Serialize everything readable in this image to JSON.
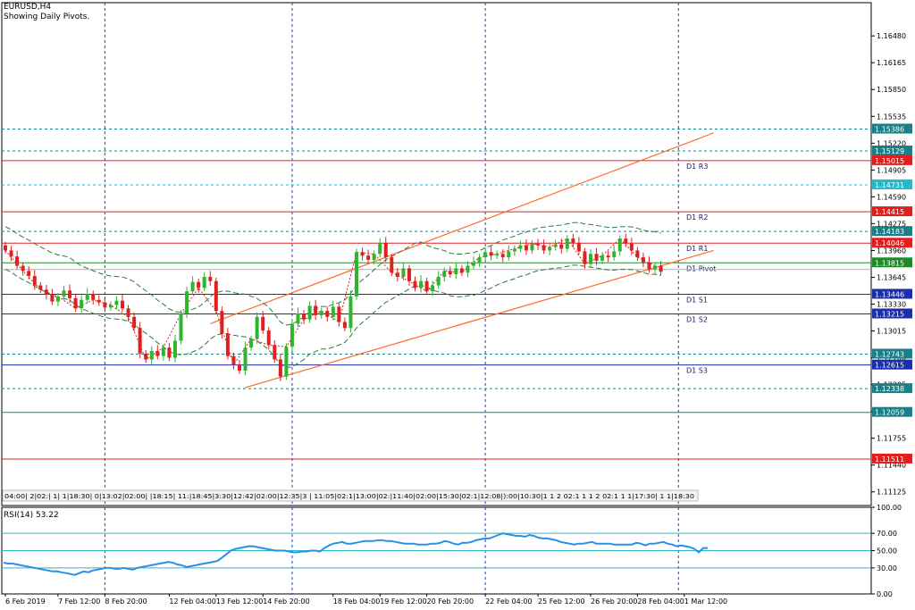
{
  "chart_data": {
    "type": "candlestick",
    "symbol_label": "EURUSD,H4",
    "subtitle": "Showing Daily Pivots.",
    "colors": {
      "up": "#2db52d",
      "down": "#e02020",
      "grid": "#1d3fb8",
      "frame": "#000000",
      "channel": "#ff6a2a",
      "rsi": "#2b8fe6",
      "level_cyan": "#28b8c8"
    },
    "price_ylim": [
      1.10965,
      1.1687
    ],
    "y_ticks": [
      "1.16480",
      "1.16165",
      "1.15850",
      "1.15535",
      "1.15220",
      "1.14905",
      "1.14590",
      "1.14275",
      "1.13960",
      "1.13645",
      "1.13330",
      "1.13015",
      "1.12700",
      "1.12385",
      "1.12070",
      "1.11755",
      "1.11440",
      "1.11125"
    ],
    "x_labels": [
      {
        "t": "6 Feb 2019",
        "i": 0
      },
      {
        "t": "7 Feb 12:00",
        "i": 9
      },
      {
        "t": "8 Feb 20:00",
        "i": 17
      },
      {
        "t": "12 Feb 04:00",
        "i": 28
      },
      {
        "t": "13 Feb 12:00",
        "i": 36
      },
      {
        "t": "14 Feb 20:00",
        "i": 44
      },
      {
        "t": "18 Feb 04:00",
        "i": 56
      },
      {
        "t": "19 Feb 12:00",
        "i": 64
      },
      {
        "t": "20 Feb 20:00",
        "i": 72
      },
      {
        "t": "22 Feb 04:00",
        "i": 82
      },
      {
        "t": "25 Feb 12:00",
        "i": 91
      },
      {
        "t": "26 Feb 20:00",
        "i": 100
      },
      {
        "t": "28 Feb 04:00",
        "i": 108
      },
      {
        "t": "1 Mar 12:00",
        "i": 116
      }
    ],
    "vgrid_idx": [
      17,
      49,
      82,
      115
    ],
    "levels": [
      {
        "v": 1.15386,
        "style": "dash",
        "color": "#1a7f86",
        "label": "1.15386",
        "tag": "",
        "badge": "#1a7f86"
      },
      {
        "v": 1.15129,
        "style": "dash",
        "color": "#1a7f86",
        "label": "1.15129",
        "tag": "",
        "badge": "#1a7f86"
      },
      {
        "v": 1.15015,
        "style": "solid",
        "color": "#e02020",
        "label": "1.15015",
        "tag": "D1 R3",
        "badge": "#e02020"
      },
      {
        "v": 1.14731,
        "style": "dash",
        "color": "#28b8c8",
        "label": "1.14731",
        "tag": "",
        "badge": "#28b8c8"
      },
      {
        "v": 1.14415,
        "style": "solid",
        "color": "#e02020",
        "label": "1.14415",
        "tag": "D1 R2",
        "badge": "#e02020"
      },
      {
        "v": 1.14183,
        "style": "dash",
        "color": "#1a7f86",
        "label": "1.14183",
        "tag": "",
        "badge": "#1a7f86"
      },
      {
        "v": 1.14046,
        "style": "solid",
        "color": "#e02020",
        "label": "1.14046",
        "tag": "D1 R1",
        "badge": "#e02020"
      },
      {
        "v": 1.13815,
        "style": "solid",
        "color": "#1f8a2a",
        "label": "1.13815",
        "tag": "D1 Pivot",
        "badge": "#1f8a2a"
      },
      {
        "v": 1.13446,
        "style": "solid",
        "color": "#1b2fa8",
        "label": "1.13446",
        "tag": "D1 S1",
        "badge": "#1b2fa8"
      },
      {
        "v": 1.13215,
        "style": "solid",
        "color": "#1b2fa8",
        "label": "1.13215",
        "tag": "D1 S2",
        "badge": "#1b2fa8"
      },
      {
        "v": 1.12743,
        "style": "dash",
        "color": "#1a7f86",
        "label": "1.12743",
        "tag": "",
        "badge": "#1a7f86"
      },
      {
        "v": 1.12615,
        "style": "solid",
        "color": "#1b2fa8",
        "label": "1.12615",
        "tag": "D1 S3",
        "badge": "#1b2fa8"
      },
      {
        "v": 1.12338,
        "style": "dash",
        "color": "#1a7f86",
        "label": "1.12338",
        "tag": "",
        "badge": "#1a7f86"
      },
      {
        "v": 1.12059,
        "style": "solid",
        "color": "#1a7f86",
        "label": "1.12059",
        "tag": "",
        "badge": "#1a7f86"
      },
      {
        "v": 1.11511,
        "style": "solid",
        "color": "#e02020",
        "label": "1.11511",
        "tag": "",
        "badge": "#e02020"
      }
    ],
    "current_price": 1.13737,
    "channel": [
      {
        "i0": 35,
        "v0": 1.131,
        "i1": 121,
        "v1": 1.1534
      },
      {
        "i0": 41,
        "v0": 1.1235,
        "i1": 121,
        "v1": 1.1396
      }
    ],
    "closes": [
      1.1396,
      1.1389,
      1.1378,
      1.1372,
      1.1366,
      1.1355,
      1.135,
      1.1344,
      1.1336,
      1.1342,
      1.1349,
      1.134,
      1.1328,
      1.1338,
      1.1345,
      1.1338,
      1.1335,
      1.1329,
      1.1332,
      1.1337,
      1.1328,
      1.1318,
      1.1305,
      1.1275,
      1.1268,
      1.1278,
      1.1272,
      1.1282,
      1.127,
      1.129,
      1.1322,
      1.1348,
      1.1359,
      1.1352,
      1.1365,
      1.136,
      1.1325,
      1.1298,
      1.1272,
      1.1262,
      1.1255,
      1.1282,
      1.1292,
      1.1318,
      1.1302,
      1.1285,
      1.1268,
      1.1248,
      1.1283,
      1.131,
      1.1322,
      1.1315,
      1.1331,
      1.132,
      1.1325,
      1.1318,
      1.133,
      1.1312,
      1.1305,
      1.1342,
      1.1394,
      1.139,
      1.1385,
      1.1392,
      1.1405,
      1.1388,
      1.137,
      1.1365,
      1.1375,
      1.136,
      1.1352,
      1.136,
      1.1348,
      1.1355,
      1.1365,
      1.1372,
      1.1368,
      1.1375,
      1.137,
      1.1378,
      1.1382,
      1.1388,
      1.1394,
      1.139,
      1.1392,
      1.1388,
      1.1395,
      1.1398,
      1.1402,
      1.1396,
      1.1404,
      1.1402,
      1.1396,
      1.14,
      1.1403,
      1.1398,
      1.141,
      1.1405,
      1.1395,
      1.138,
      1.1392,
      1.1384,
      1.139,
      1.1388,
      1.1395,
      1.141,
      1.1404,
      1.1396,
      1.1388,
      1.1382,
      1.1374,
      1.1378,
      1.1371
    ],
    "rsi": {
      "label": "RSI(14) 53.22",
      "ylim": [
        0,
        100
      ],
      "levels": [
        70,
        30
      ],
      "ticks": [
        "100.00",
        "70.00",
        "50.00",
        "30.00",
        "0.00"
      ],
      "values": [
        36,
        35,
        35,
        34,
        33,
        32,
        31,
        30,
        29,
        28,
        27,
        26,
        26,
        25,
        24,
        23,
        22,
        24,
        26,
        25,
        27,
        28,
        29,
        30,
        30,
        29,
        29,
        30,
        29,
        28,
        30,
        31,
        32,
        33,
        34,
        35,
        36,
        37,
        36,
        34,
        33,
        31,
        32,
        33,
        34,
        35,
        36,
        37,
        38,
        42,
        46,
        50,
        52,
        53,
        54,
        55,
        55,
        54,
        53,
        52,
        51,
        50,
        50,
        50,
        49,
        48,
        48,
        49,
        49,
        50,
        50,
        49,
        53,
        56,
        58,
        59,
        60,
        58,
        58,
        59,
        60,
        61,
        61,
        61,
        62,
        62,
        61,
        61,
        60,
        59,
        58,
        58,
        58,
        57,
        57,
        57,
        58,
        58,
        59,
        61,
        60,
        58,
        57,
        59,
        59,
        60,
        62,
        63,
        64,
        64,
        66,
        68,
        70,
        69,
        68,
        67,
        67,
        66,
        68,
        67,
        65,
        64,
        64,
        63,
        62,
        60,
        59,
        58,
        57,
        58,
        58,
        59,
        60,
        58,
        58,
        58,
        58,
        57,
        57,
        57,
        57,
        57,
        59,
        58,
        56,
        58,
        58,
        59,
        60,
        58,
        57,
        55,
        56,
        55,
        54,
        52,
        48,
        53,
        53
      ]
    },
    "time_strip": "04:00| 2|02:| 1| 1|18:30| 0|13:02|02:00| |18:15| 11:|18:45|3:30|12:42|02:00|12:35|3 | 11:05|02:1|13:00|02:|11:40|02:00|15:30|02:1|12:08|):00|10:30|1 1 2 02:1 1 1 2 02:1 1 1|17:30| 1 1|18:30"
  }
}
